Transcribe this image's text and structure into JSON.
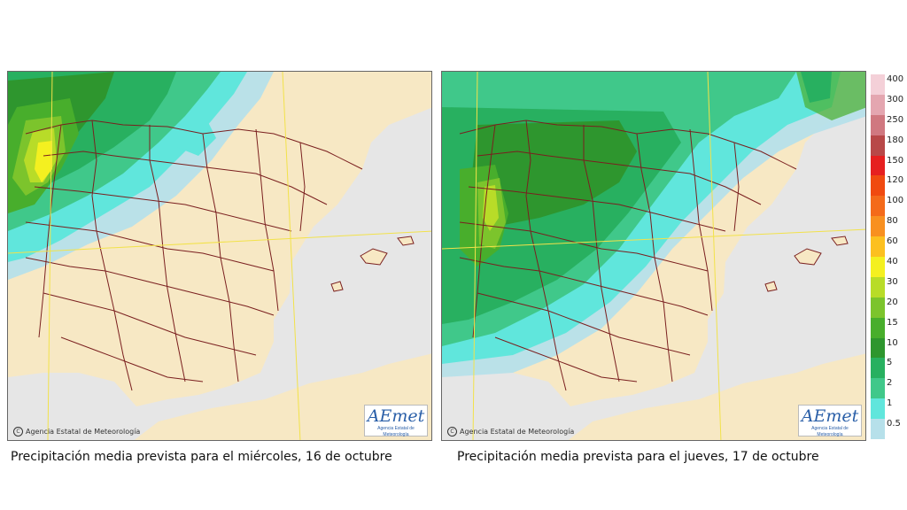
{
  "maps": [
    {
      "caption": "Precipitación media prevista para el miércoles, 16 de octubre",
      "credit": "Agencia Estatal de Meteorología",
      "credit_icon": "copyright-icon",
      "logo_text": "AEmet",
      "logo_sub": "Agencia Estatal de Meteorología"
    },
    {
      "caption": "Precipitación media prevista para el jueves, 17 de octubre",
      "credit": "Agencia Estatal de Meteorología",
      "credit_icon": "copyright-icon",
      "logo_text": "AEmet",
      "logo_sub": "Agencia Estatal de Meteorología"
    }
  ],
  "legend": [
    {
      "label": "400",
      "color": "#f4d0d8"
    },
    {
      "label": "300",
      "color": "#e4a6b0"
    },
    {
      "label": "250",
      "color": "#d07880"
    },
    {
      "label": "180",
      "color": "#b84848"
    },
    {
      "label": "150",
      "color": "#e62020"
    },
    {
      "label": "120",
      "color": "#f04a10"
    },
    {
      "label": "100",
      "color": "#f46a1a"
    },
    {
      "label": "80",
      "color": "#f89020"
    },
    {
      "label": "60",
      "color": "#fcc020"
    },
    {
      "label": "40",
      "color": "#f4f020"
    },
    {
      "label": "30",
      "color": "#b8dc28"
    },
    {
      "label": "20",
      "color": "#7cc42c"
    },
    {
      "label": "15",
      "color": "#48ae2c"
    },
    {
      "label": "10",
      "color": "#2e962e"
    },
    {
      "label": "5",
      "color": "#28b060"
    },
    {
      "label": "2",
      "color": "#40c88a"
    },
    {
      "label": "1",
      "color": "#60e6dc"
    },
    {
      "label": "0.5",
      "color": "#b6e0ea"
    }
  ],
  "colors": {
    "land": "#f7e8c4",
    "sea": "#e6e6e6",
    "border": "#7a1f1f",
    "graticule": "#f2e24a"
  }
}
